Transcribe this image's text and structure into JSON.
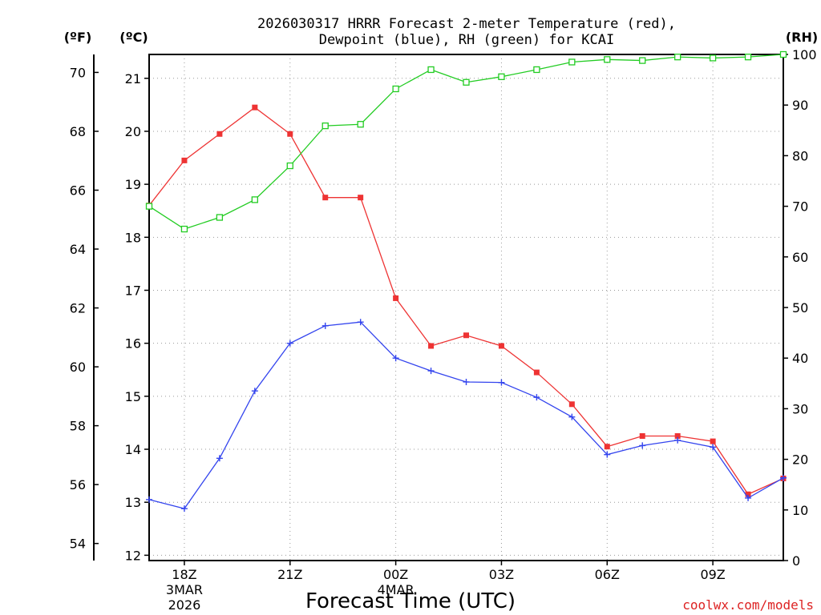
{
  "chart_data": {
    "type": "line",
    "title_line1": "2026030317 HRRR Forecast 2-meter Temperature (red),",
    "title_line2": "Dewpoint (blue), RH (green) for KCAI",
    "xlabel": "Forecast Time (UTC)",
    "unit_left_f": "(ºF)",
    "unit_left_c": "(ºC)",
    "unit_right": "(RH)",
    "credit": "coolwx.com/models",
    "x": [
      17,
      18,
      19,
      20,
      21,
      22,
      23,
      24,
      25,
      26,
      27,
      28,
      29,
      30,
      31,
      32,
      33,
      34,
      35
    ],
    "xlim": [
      17,
      35
    ],
    "x_ticks": [
      {
        "value": 18,
        "label": "18Z",
        "sub1": "3MAR",
        "sub2": "2026"
      },
      {
        "value": 21,
        "label": "21Z",
        "sub1": "",
        "sub2": ""
      },
      {
        "value": 24,
        "label": "00Z",
        "sub1": "4MAR",
        "sub2": ""
      },
      {
        "value": 27,
        "label": "03Z",
        "sub1": "",
        "sub2": ""
      },
      {
        "value": 30,
        "label": "06Z",
        "sub1": "",
        "sub2": ""
      },
      {
        "value": 33,
        "label": "09Z",
        "sub1": "",
        "sub2": ""
      }
    ],
    "y_c_lim": [
      11.9,
      21.45
    ],
    "y_c_ticks": [
      "12",
      "13",
      "14",
      "15",
      "16",
      "17",
      "18",
      "19",
      "20",
      "21"
    ],
    "y_f_ticks": [
      "54",
      "56",
      "58",
      "60",
      "62",
      "64",
      "66",
      "68",
      "70"
    ],
    "y_rh_lim": [
      0,
      100
    ],
    "y_rh_ticks": [
      "0",
      "10",
      "20",
      "30",
      "40",
      "50",
      "60",
      "70",
      "80",
      "90",
      "100"
    ],
    "series": [
      {
        "name": "Temperature",
        "color": "#ee3333",
        "marker": "filled-square",
        "values_c": [
          18.6,
          19.45,
          19.95,
          20.45,
          19.95,
          18.75,
          18.75,
          16.85,
          15.95,
          16.15,
          15.95,
          15.45,
          14.85,
          14.05,
          14.25,
          14.25,
          14.15,
          13.15,
          13.45
        ]
      },
      {
        "name": "Dewpoint",
        "color": "#3344ee",
        "marker": "plus",
        "values_c": [
          13.05,
          12.88,
          13.83,
          15.1,
          16.0,
          16.33,
          16.4,
          15.72,
          15.48,
          15.27,
          15.26,
          14.98,
          14.61,
          13.9,
          14.07,
          14.17,
          14.04,
          13.08,
          13.46
        ]
      },
      {
        "name": "RH",
        "color": "#22cc22",
        "marker": "open-square",
        "values_rh": [
          70.0,
          65.5,
          67.8,
          71.3,
          78.0,
          85.9,
          86.2,
          93.2,
          97.0,
          94.5,
          95.6,
          97.0,
          98.5,
          99.0,
          98.8,
          99.5,
          99.3,
          99.5,
          100.0
        ]
      }
    ]
  }
}
